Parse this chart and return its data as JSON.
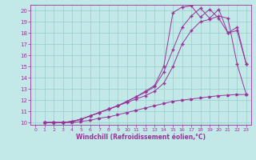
{
  "xlabel": "Windchill (Refroidissement éolien,°C)",
  "xlim": [
    -0.5,
    23.5
  ],
  "ylim": [
    9.8,
    20.5
  ],
  "xticks": [
    0,
    1,
    2,
    3,
    4,
    5,
    6,
    7,
    8,
    9,
    10,
    11,
    12,
    13,
    14,
    15,
    16,
    17,
    18,
    19,
    20,
    21,
    22,
    23
  ],
  "yticks": [
    10,
    11,
    12,
    13,
    14,
    15,
    16,
    17,
    18,
    19,
    20
  ],
  "bg_color": "#c2e8e8",
  "line_color": "#993399",
  "grid_color": "#99cccc",
  "line1_x": [
    1,
    2,
    3,
    4,
    5,
    6,
    7,
    8,
    9,
    10,
    11,
    12,
    13,
    14,
    15,
    16,
    17,
    18,
    19,
    20,
    21,
    22,
    23
  ],
  "line1_y": [
    10.0,
    10.0,
    10.0,
    10.0,
    10.1,
    10.2,
    10.4,
    10.5,
    10.7,
    10.9,
    11.1,
    11.3,
    11.5,
    11.7,
    11.9,
    12.0,
    12.1,
    12.2,
    12.3,
    12.4,
    12.45,
    12.5,
    12.5
  ],
  "line2_x": [
    1,
    2,
    3,
    4,
    5,
    6,
    7,
    8,
    9,
    10,
    11,
    12,
    13,
    14,
    15,
    16,
    17,
    18,
    19,
    20,
    21,
    22,
    23
  ],
  "line2_y": [
    10.0,
    10.0,
    10.0,
    10.1,
    10.3,
    10.6,
    10.9,
    11.2,
    11.5,
    11.8,
    12.1,
    12.4,
    12.8,
    13.5,
    15.0,
    17.0,
    18.2,
    19.0,
    19.2,
    19.5,
    19.3,
    15.2,
    12.5
  ],
  "line3_x": [
    1,
    2,
    3,
    4,
    5,
    6,
    7,
    8,
    9,
    10,
    11,
    12,
    13,
    14,
    15,
    16,
    17,
    18,
    19,
    20,
    21,
    22,
    23
  ],
  "line3_y": [
    10.0,
    10.0,
    10.0,
    10.1,
    10.3,
    10.6,
    10.9,
    11.2,
    11.5,
    11.9,
    12.3,
    12.7,
    13.2,
    14.5,
    16.5,
    18.5,
    19.5,
    20.2,
    19.3,
    20.1,
    18.0,
    18.5,
    15.2
  ],
  "line4_x": [
    1,
    2,
    3,
    4,
    5,
    6,
    7,
    8,
    9,
    10,
    11,
    12,
    13,
    14,
    15,
    16,
    17,
    18,
    19,
    20,
    21,
    22,
    23
  ],
  "line4_y": [
    10.0,
    10.0,
    10.0,
    10.1,
    10.3,
    10.6,
    10.9,
    11.2,
    11.5,
    11.9,
    12.3,
    12.8,
    13.3,
    15.0,
    19.8,
    20.3,
    20.4,
    19.4,
    20.1,
    19.3,
    18.0,
    18.2,
    15.2
  ]
}
